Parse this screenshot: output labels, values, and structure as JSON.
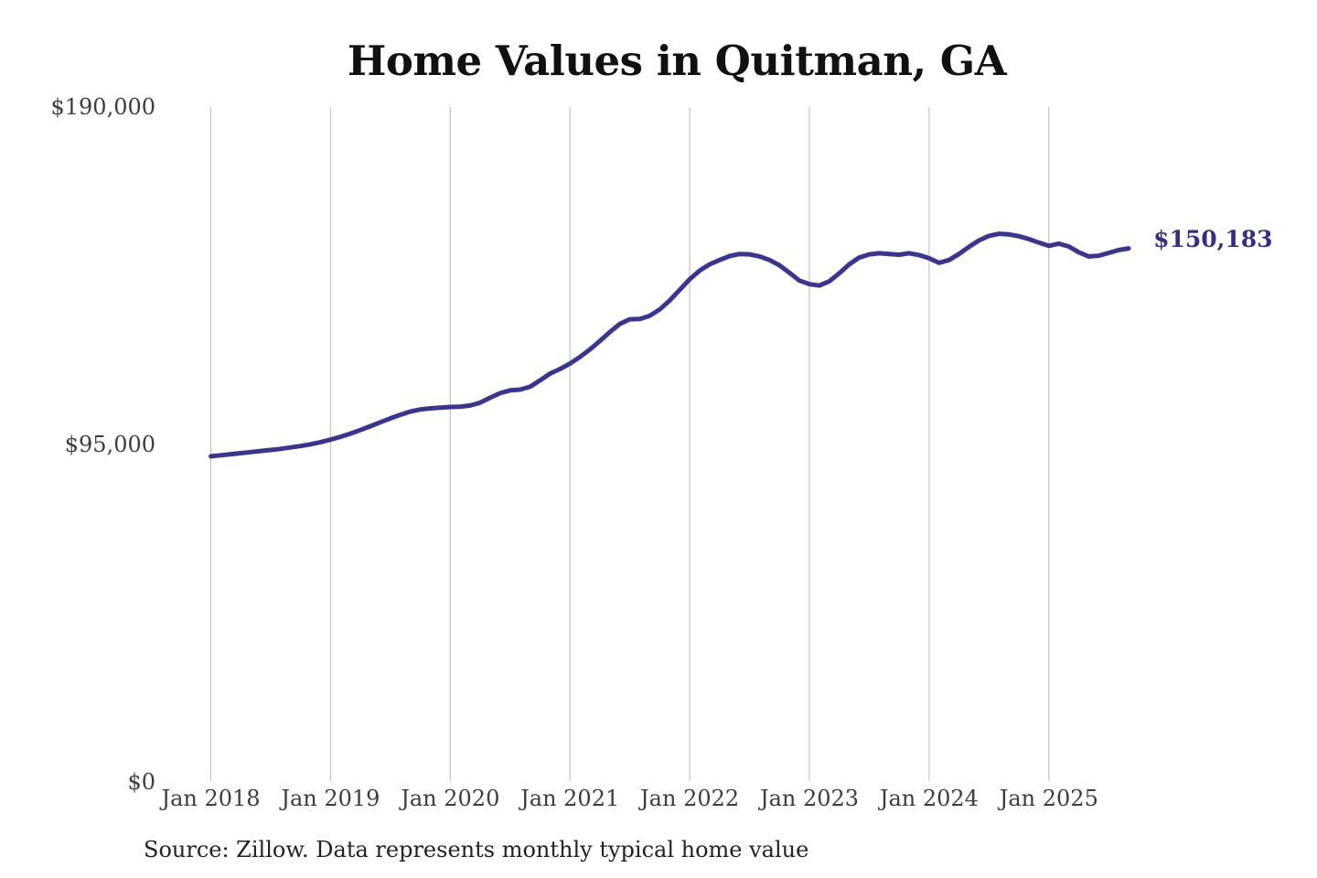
{
  "chart_data": {
    "type": "line",
    "title": "Home Values in Quitman, GA",
    "xlabel": "",
    "ylabel": "",
    "ylim": [
      0,
      190000
    ],
    "grid": "vertical-only",
    "legend": "none",
    "x_start": "Jan 2018",
    "x_end": "Sep 2025",
    "frequency": "monthly",
    "x_ticks": [
      "Jan 2018",
      "Jan 2019",
      "Jan 2020",
      "Jan 2021",
      "Jan 2022",
      "Jan 2023",
      "Jan 2024",
      "Jan 2025"
    ],
    "y_ticks": [
      {
        "label": "$190,000",
        "value": 190000
      },
      {
        "label": "$95,000",
        "value": 95000
      },
      {
        "label": "$0",
        "value": 0
      }
    ],
    "end_label": "$150,183",
    "end_value": 150183,
    "series": [
      {
        "name": "Monthly typical home value",
        "color": "#3a3593",
        "values": [
          91600,
          91900,
          92200,
          92500,
          92800,
          93100,
          93400,
          93700,
          94100,
          94500,
          95000,
          95600,
          96300,
          97100,
          98000,
          99000,
          100100,
          101200,
          102300,
          103300,
          104200,
          104800,
          105100,
          105300,
          105500,
          105600,
          105900,
          106700,
          108100,
          109400,
          110200,
          110400,
          111200,
          113000,
          114900,
          116200,
          117700,
          119600,
          121700,
          124100,
          126600,
          128900,
          130200,
          130300,
          131200,
          133000,
          135500,
          138500,
          141500,
          143900,
          145700,
          146900,
          148000,
          148600,
          148500,
          147900,
          146900,
          145400,
          143300,
          141100,
          140100,
          139700,
          140900,
          143200,
          145700,
          147600,
          148500,
          148800,
          148600,
          148400,
          148800,
          148300,
          147400,
          146100,
          146900,
          148600,
          150600,
          152400,
          153700,
          154300,
          154100,
          153600,
          152800,
          151800,
          150900,
          151500,
          150700,
          149100,
          147900,
          148100,
          148900,
          149700,
          150183
        ]
      }
    ]
  },
  "footer": {
    "source": "Source: Zillow. Data represents monthly typical home value"
  },
  "colors": {
    "line": "#3a3593",
    "end_label_text": "#333083",
    "grid": "#c8c8c8",
    "axis_text": "#3d3d3d",
    "title_text": "#111111",
    "source_text": "#222222",
    "background": "#ffffff"
  }
}
